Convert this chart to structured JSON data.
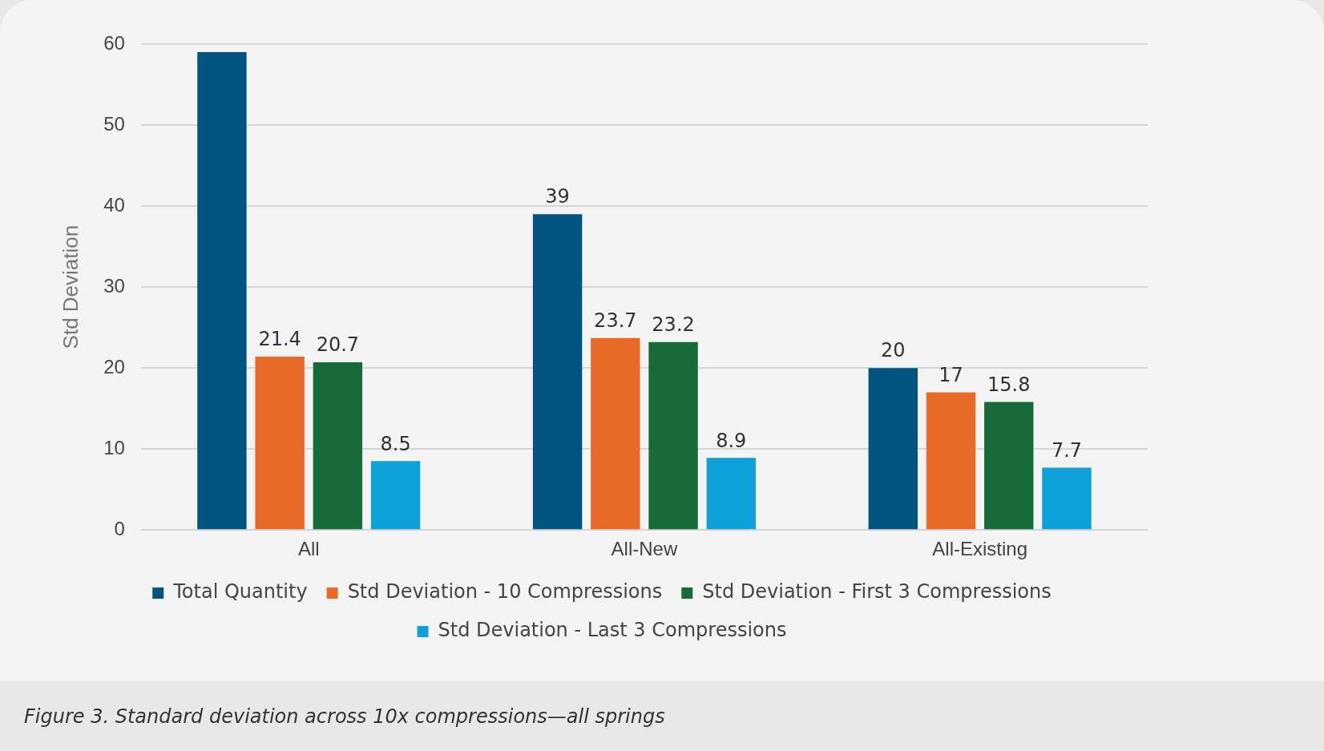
{
  "chart_data": {
    "type": "bar",
    "ylabel": "Std Deviation",
    "categories": [
      "All",
      "All-New",
      "All-Existing"
    ],
    "series": [
      {
        "name": "Total Quantity",
        "color": "#005480",
        "values": [
          59,
          39,
          20
        ],
        "value_labels": [
          null,
          "39",
          "20"
        ]
      },
      {
        "name": "Std Deviation - 10 Compressions",
        "color": "#e96a24",
        "values": [
          21.4,
          23.7,
          17
        ],
        "value_labels": [
          "21.4",
          "23.7",
          "17"
        ]
      },
      {
        "name": "Std Deviation - First 3 Compressions",
        "color": "#176b3a",
        "values": [
          20.7,
          23.2,
          15.8
        ],
        "value_labels": [
          "20.7",
          "23.2",
          "15.8"
        ]
      },
      {
        "name": "Std Deviation - Last 3 Compressions",
        "color": "#0ea0d8",
        "values": [
          8.5,
          8.9,
          7.7
        ],
        "value_labels": [
          "8.5",
          "8.9",
          "7.7"
        ]
      }
    ],
    "ylim": [
      0,
      60
    ],
    "yticks": [
      0,
      10,
      20,
      30,
      40,
      50,
      60
    ],
    "grid": "y",
    "legend": "bottom",
    "annotations": [
      "Figure 3. Standard deviation across 10x compressions—all springs"
    ]
  }
}
